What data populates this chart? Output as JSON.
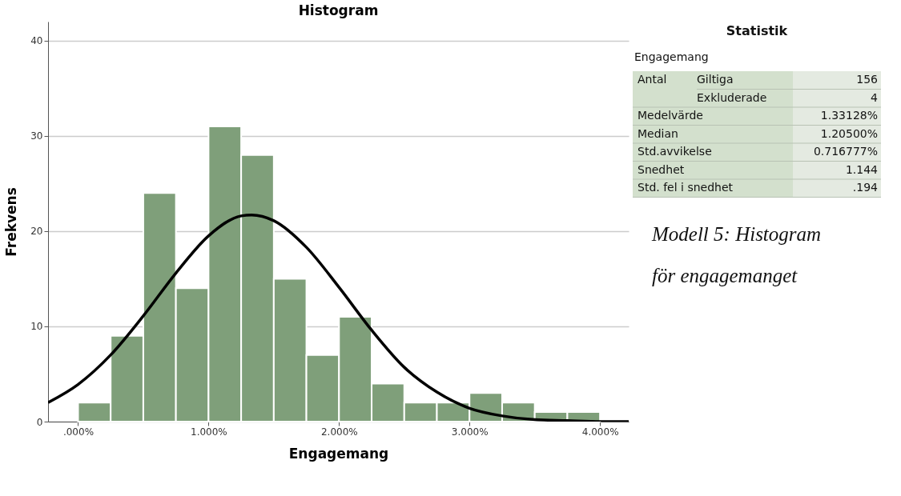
{
  "chart_data": [
    {
      "type": "histogram",
      "title": "Histogram",
      "xlabel": "Engagemang",
      "ylabel": "Frekvens",
      "bins": [
        0,
        0.25,
        0.5,
        0.75,
        1.0,
        1.25,
        1.5,
        1.75,
        2.0,
        2.25,
        2.5,
        2.75,
        3.0,
        3.25,
        3.5,
        3.75,
        4.0
      ],
      "values": [
        2,
        9,
        24,
        14,
        31,
        28,
        15,
        7,
        11,
        4,
        2,
        2,
        3,
        2,
        1,
        1
      ],
      "color": "#7f9f7a",
      "series": [
        {
          "type": "line",
          "color": "#000000",
          "x": [
            -0.23,
            0,
            0.25,
            0.5,
            0.75,
            1.0,
            1.25,
            1.33,
            1.5,
            1.75,
            2.0,
            2.25,
            2.5,
            2.75,
            3.0,
            3.25,
            3.5,
            3.75,
            4.0,
            4.22
          ],
          "values": [
            2.0,
            3.9,
            7.0,
            11.1,
            15.6,
            19.5,
            21.6,
            21.7,
            21.1,
            18.3,
            14.1,
            9.6,
            5.7,
            3.1,
            1.4,
            0.6,
            0.2,
            0.1,
            0.0,
            0.0
          ]
        }
      ],
      "xlim": [
        -0.23,
        4.22
      ],
      "ylim": [
        0,
        42
      ],
      "xticks": [
        {
          "value": 0,
          "label": ".000%"
        },
        {
          "value": 1,
          "label": "1.000%"
        },
        {
          "value": 2,
          "label": "2.000%"
        },
        {
          "value": 3,
          "label": "3.000%"
        },
        {
          "value": 4,
          "label": "4.000%"
        }
      ],
      "yticks": [
        0,
        10,
        20,
        30,
        40
      ],
      "grid": "y"
    },
    {
      "type": "other",
      "title": "Statistik",
      "subtitle": "Engagemang",
      "annotations": [
        "Antal",
        "Giltiga",
        "156",
        "Exkluderade",
        "4",
        "Medelvärde",
        "1.33128%",
        "Median",
        "1.20500%",
        "Std.avvikelse",
        "0.716777%",
        "Snedhet",
        "1.144",
        "Std. fel i snedhet",
        ".194",
        "Modell 5: Histogram",
        "för engagemanget"
      ]
    }
  ]
}
